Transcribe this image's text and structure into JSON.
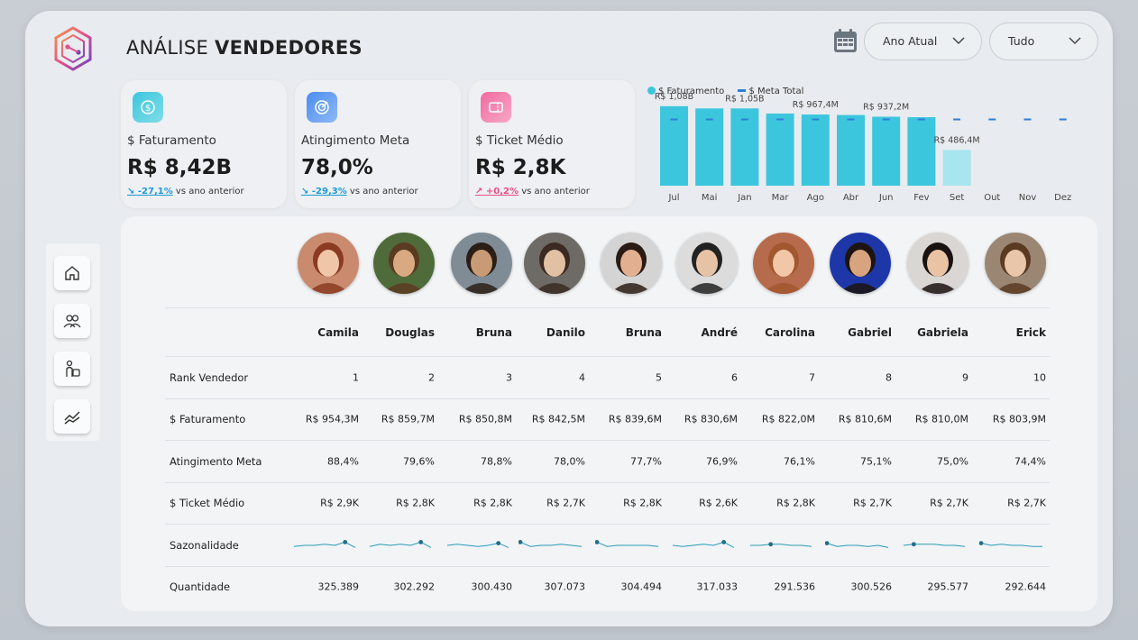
{
  "header": {
    "title_light": "ANÁLISE",
    "title_bold": "VENDEDORES",
    "filter_period": "Ano Atual",
    "filter_scope": "Tudo"
  },
  "kpis": [
    {
      "label": "$ Faturamento",
      "value": "R$ 8,42B",
      "delta": "-27,1%",
      "delta_suffix": "vs ano anterior",
      "direction": "down",
      "icon": "dollar-icon",
      "color": "#3cc6dd"
    },
    {
      "label": "Atingimento Meta",
      "value": "78,0%",
      "delta": "-29,3%",
      "delta_suffix": "vs ano anterior",
      "direction": "down",
      "icon": "target-icon",
      "color": "#4b8df0"
    },
    {
      "label": "$ Ticket Médio",
      "value": "R$ 2,8K",
      "delta": "+0,2%",
      "delta_suffix": "vs ano anterior",
      "direction": "up",
      "icon": "ticket-icon",
      "color": "#f06aa0"
    }
  ],
  "chart_data": {
    "type": "bar",
    "categories": [
      "Jul",
      "Mai",
      "Jan",
      "Mar",
      "Ago",
      "Abr",
      "Jun",
      "Fev",
      "Set",
      "Out",
      "Nov",
      "Dez"
    ],
    "series": [
      {
        "name": "$ Faturamento",
        "values": [
          1.08,
          1.05,
          1.05,
          0.98,
          0.967,
          0.96,
          0.937,
          0.93,
          0.486,
          null,
          null,
          null
        ]
      },
      {
        "name": "$ Meta Total",
        "values": [
          0.9,
          0.9,
          0.9,
          0.9,
          0.9,
          0.9,
          0.9,
          0.9,
          0.9,
          0.9,
          0.9,
          0.9
        ]
      }
    ],
    "data_labels": [
      "R$ 1,08B",
      "",
      "R$ 1,05B",
      "",
      "R$ 967,4M",
      "",
      "R$ 937,2M",
      "",
      "R$ 486,4M",
      "",
      "",
      ""
    ],
    "ylim": [
      0,
      1.2
    ],
    "colors": {
      "faturamento": "#3cc6dd",
      "faturamento_partial": "#a7e6ef",
      "meta": "#2e7fd8"
    },
    "legend": [
      "$ Faturamento",
      "$ Meta Total"
    ]
  },
  "nav": [
    {
      "name": "home-icon"
    },
    {
      "name": "users-icon"
    },
    {
      "name": "person-bag-icon"
    },
    {
      "name": "trend-icon"
    }
  ],
  "sellers": {
    "names": [
      "Camila",
      "Douglas",
      "Bruna",
      "Danilo",
      "Bruna",
      "André",
      "Carolina",
      "Gabriel",
      "Gabriela",
      "Erick"
    ],
    "rows": [
      {
        "label": "Rank Vendedor",
        "values": [
          "1",
          "2",
          "3",
          "4",
          "5",
          "6",
          "7",
          "8",
          "9",
          "10"
        ]
      },
      {
        "label": "$ Faturamento",
        "values": [
          "R$ 954,3M",
          "R$ 859,7M",
          "R$ 850,8M",
          "R$ 842,5M",
          "R$ 839,6M",
          "R$ 830,6M",
          "R$ 822,0M",
          "R$ 810,6M",
          "R$ 810,0M",
          "R$ 803,9M"
        ]
      },
      {
        "label": "Atingimento Meta",
        "values": [
          "88,4%",
          "79,6%",
          "78,8%",
          "78,0%",
          "77,7%",
          "76,9%",
          "76,1%",
          "75,1%",
          "75,0%",
          "74,4%"
        ]
      },
      {
        "label": "$ Ticket Médio",
        "values": [
          "R$ 2,9K",
          "R$ 2,8K",
          "R$ 2,8K",
          "R$ 2,7K",
          "R$ 2,8K",
          "R$ 2,6K",
          "R$ 2,8K",
          "R$ 2,7K",
          "R$ 2,7K",
          "R$ 2,7K"
        ]
      },
      {
        "label": "Sazonalidade",
        "values": [
          "",
          "",
          "",
          "",
          "",
          "",
          "",
          "",
          "",
          ""
        ]
      },
      {
        "label": "Quantidade",
        "values": [
          "325.389",
          "302.292",
          "300.430",
          "307.073",
          "304.494",
          "317.033",
          "291.536",
          "300.526",
          "295.577",
          "292.644"
        ]
      }
    ],
    "sparklines": [
      [
        0.4,
        0.5,
        0.5,
        0.6,
        0.5,
        0.8,
        0.3
      ],
      [
        0.4,
        0.6,
        0.5,
        0.6,
        0.5,
        0.8,
        0.3
      ],
      [
        0.5,
        0.6,
        0.5,
        0.4,
        0.5,
        0.7,
        0.3
      ],
      [
        0.8,
        0.4,
        0.5,
        0.5,
        0.6,
        0.5,
        0.4
      ],
      [
        0.8,
        0.4,
        0.5,
        0.5,
        0.5,
        0.5,
        0.4
      ],
      [
        0.5,
        0.4,
        0.5,
        0.6,
        0.5,
        0.8,
        0.3
      ],
      [
        0.5,
        0.5,
        0.6,
        0.6,
        0.5,
        0.5,
        0.4
      ],
      [
        0.7,
        0.4,
        0.5,
        0.5,
        0.4,
        0.5,
        0.3
      ],
      [
        0.5,
        0.6,
        0.6,
        0.6,
        0.5,
        0.5,
        0.4
      ],
      [
        0.7,
        0.5,
        0.6,
        0.5,
        0.5,
        0.4,
        0.4
      ]
    ],
    "spark_color": "#2a9bb8",
    "avatar_palettes": [
      {
        "bg": "#c98a6e",
        "skin": "#f0c6a8",
        "hair": "#8a3b22"
      },
      {
        "bg": "#4f6b3a",
        "skin": "#d9a982",
        "hair": "#5a3b22"
      },
      {
        "bg": "#7f8c96",
        "skin": "#c99a76",
        "hair": "#2b1e16"
      },
      {
        "bg": "#6e6a66",
        "skin": "#e1c0a4",
        "hair": "#3a2a22"
      },
      {
        "bg": "#d4d4d4",
        "skin": "#e2b090",
        "hair": "#2a1c14"
      },
      {
        "bg": "#dcdcdc",
        "skin": "#e7c3a6",
        "hair": "#222222"
      },
      {
        "bg": "#b66c4c",
        "skin": "#f1c7a8",
        "hair": "#a3572f"
      },
      {
        "bg": "#1e37a8",
        "skin": "#d8a37f",
        "hair": "#1c1410"
      },
      {
        "bg": "#d9d6d3",
        "skin": "#eac2a4",
        "hair": "#1a1210"
      },
      {
        "bg": "#9a8673",
        "skin": "#e9c6aa",
        "hair": "#5b3a22"
      }
    ]
  }
}
